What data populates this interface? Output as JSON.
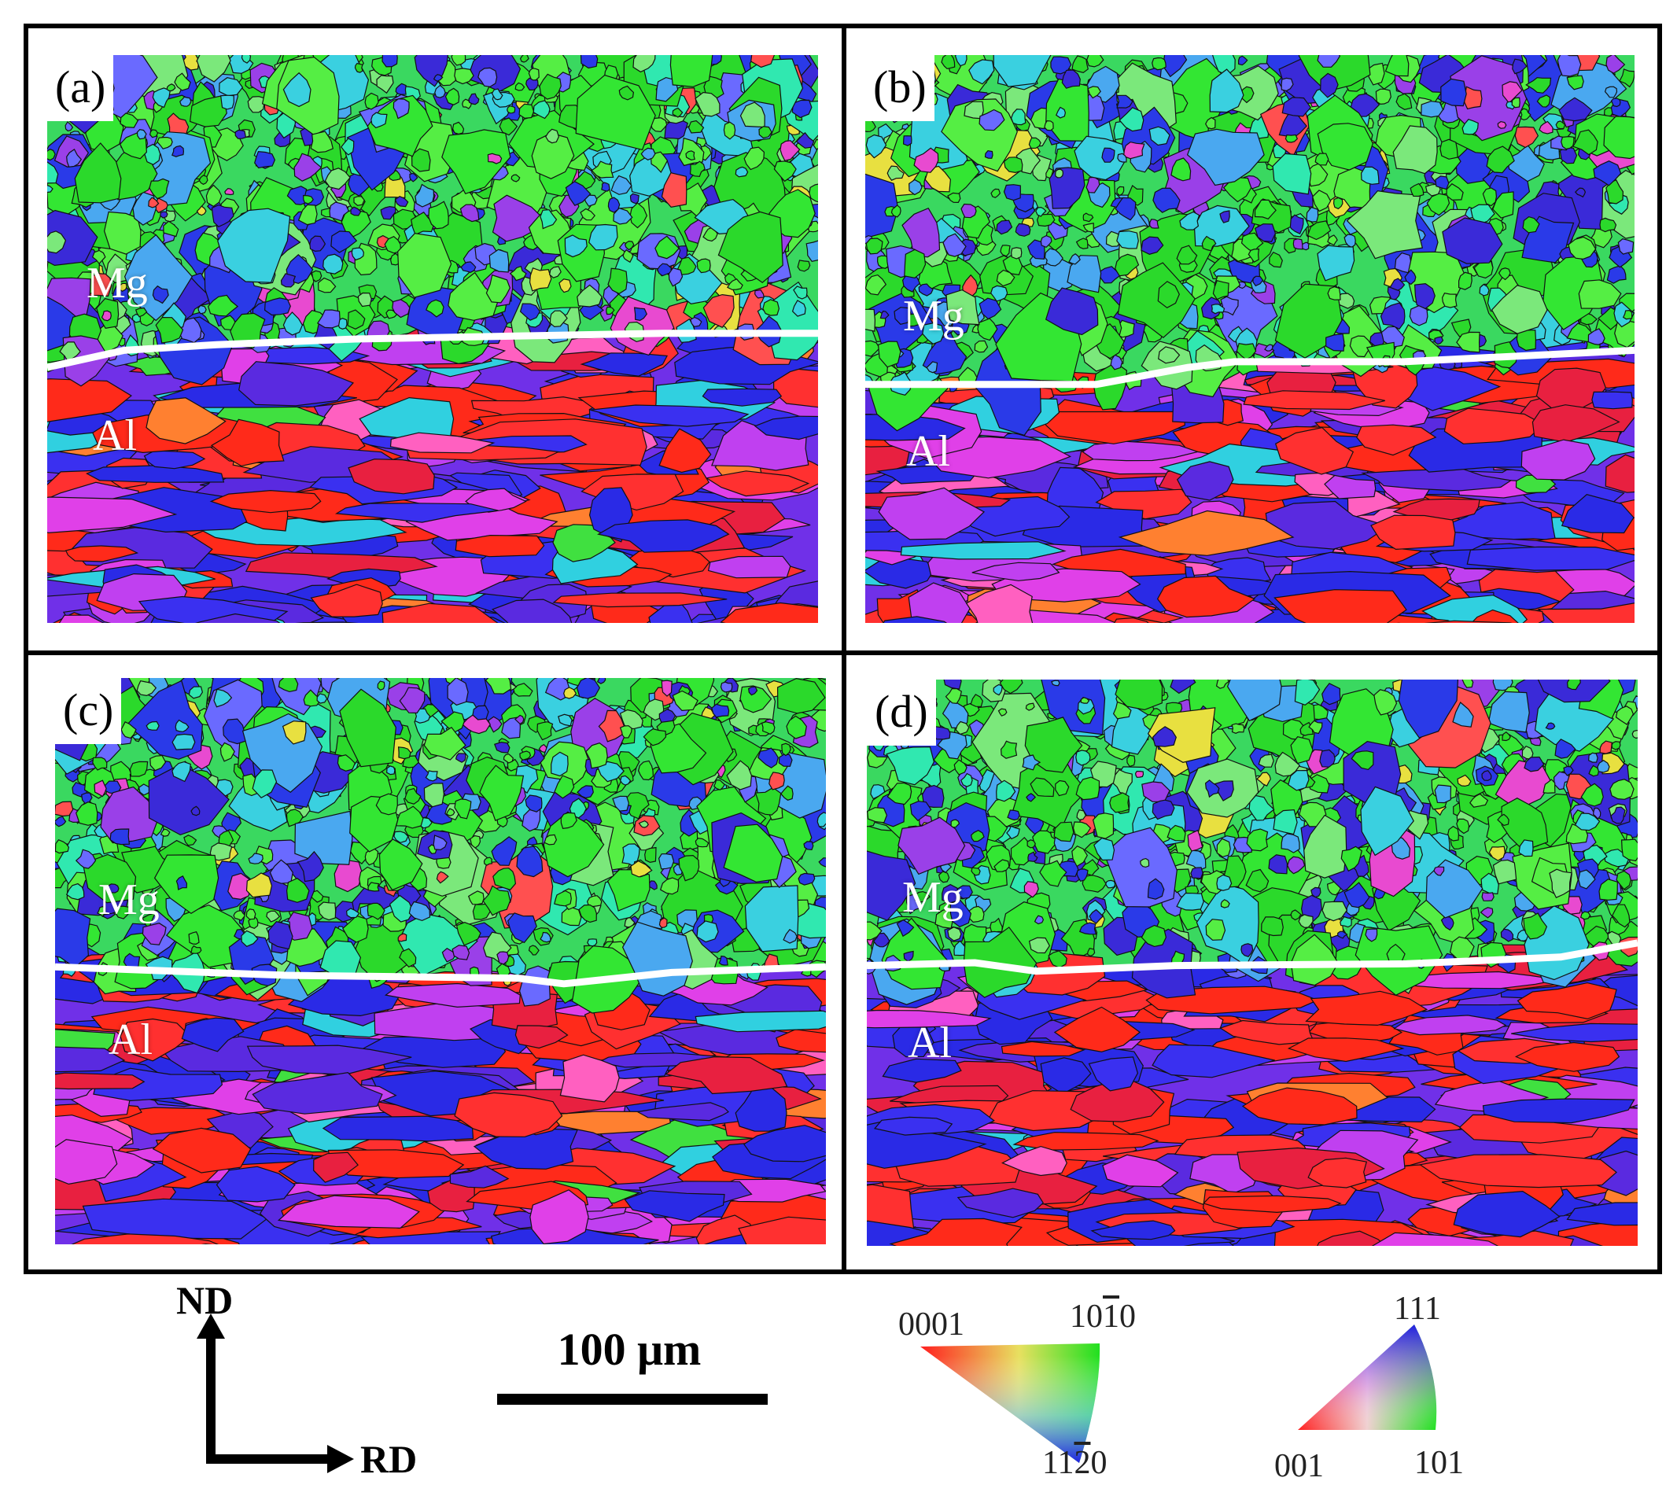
{
  "panels": [
    {
      "label": "(a)",
      "top_phase": "Mg",
      "bottom_phase": "Al"
    },
    {
      "label": "(b)",
      "top_phase": "Mg",
      "bottom_phase": "Al"
    },
    {
      "label": "(c)",
      "top_phase": "Mg",
      "bottom_phase": "Al"
    },
    {
      "label": "(d)",
      "top_phase": "Mg",
      "bottom_phase": "Al"
    }
  ],
  "axes": {
    "vertical": "ND",
    "horizontal": "RD"
  },
  "scale_bar": {
    "text": "100 μm"
  },
  "legend_hcp": {
    "corner_a": "0001",
    "corner_b": "1010",
    "corner_c": "1120"
  },
  "legend_fcc": {
    "corner_top": "111",
    "corner_left": "001",
    "corner_right": "101"
  },
  "colors": {
    "red": "#ff2a1a",
    "green": "#2ae62a",
    "blue": "#2a2ae6",
    "magenta": "#e040e8",
    "cyan": "#30d8e0"
  }
}
